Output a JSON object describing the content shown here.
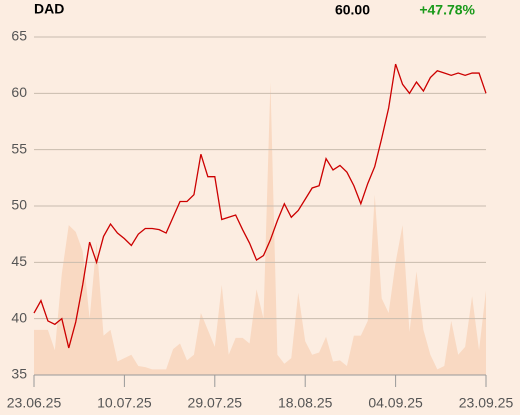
{
  "header": {
    "symbol": "DAD",
    "price": "60.00",
    "change": "+47.78%"
  },
  "chart_data": {
    "type": "line",
    "xlim": [
      0,
      65
    ],
    "xticks": [
      {
        "value": 0,
        "label": "23.06.25"
      },
      {
        "value": 13,
        "label": "10.07.25"
      },
      {
        "value": 26,
        "label": "29.07.25"
      },
      {
        "value": 39,
        "label": "18.08.25"
      },
      {
        "value": 52,
        "label": "04.09.25"
      },
      {
        "value": 65,
        "label": "23.09.25"
      }
    ],
    "ylim": [
      35,
      65
    ],
    "yticks": [
      35,
      40,
      45,
      50,
      55,
      60,
      65
    ],
    "grid": true,
    "series": [
      {
        "color": "#f9d9c2",
        "fill": true,
        "values": [
          39,
          39,
          39,
          37.2,
          44,
          48.3,
          47.7,
          46,
          40,
          46.8,
          38.5,
          39,
          36.2,
          36.5,
          36.8,
          35.8,
          35.7,
          35.5,
          35.5,
          35.5,
          37.3,
          37.8,
          36.3,
          36.8,
          40.5,
          39,
          37.5,
          43,
          36.8,
          38.3,
          38.3,
          37.8,
          42.6,
          40,
          61,
          36.8,
          36,
          36.5,
          42.3,
          38,
          36.8,
          37,
          38.4,
          36.2,
          36.3,
          35.8,
          38.5,
          38.5,
          39.8,
          51,
          41.8,
          40.5,
          45,
          48.3,
          38.8,
          44.2,
          39,
          36.8,
          35.5,
          35.8,
          39.8,
          36.8,
          37.5,
          42,
          37.2,
          42.5
        ]
      },
      {
        "color": "#cc0000",
        "values": [
          40.5,
          41.6,
          39.8,
          39.5,
          40,
          37.4,
          39.7,
          43,
          46.8,
          45,
          47.3,
          48.4,
          47.6,
          47.1,
          46.5,
          47.5,
          48,
          48,
          47.9,
          47.6,
          49,
          50.4,
          50.4,
          51,
          54.6,
          52.6,
          52.6,
          48.8,
          49,
          49.2,
          47.9,
          46.7,
          45.2,
          45.6,
          47,
          48.7,
          50.2,
          49,
          49.6,
          50.6,
          51.6,
          51.8,
          54.2,
          53.2,
          53.6,
          53,
          51.8,
          50.2,
          52,
          53.5,
          56,
          58.7,
          62.6,
          60.8,
          60,
          61,
          60.2,
          61.4,
          62,
          61.8,
          61.6,
          61.8,
          61.6,
          61.8,
          61.8,
          60
        ]
      }
    ]
  }
}
